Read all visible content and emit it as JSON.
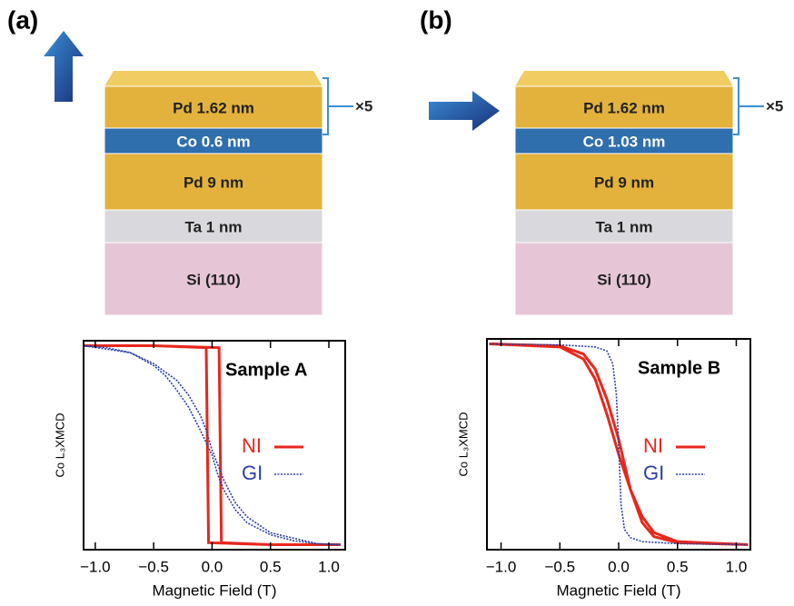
{
  "panels": [
    {
      "label": "(a)",
      "layers": [
        "Pd 1.62 nm",
        "Co 0.6 nm",
        "Pd 9 nm",
        "Ta 1 nm",
        "Si (110)"
      ],
      "repeat": "×5"
    },
    {
      "label": "(b)",
      "layers": [
        "Pd 1.62 nm",
        "Co 1.03 nm",
        "Pd 9 nm",
        "Ta 1 nm",
        "Si (110)"
      ],
      "repeat": "×5"
    }
  ],
  "chart_data": [
    {
      "type": "line",
      "annotation": "Sample A",
      "xlabel": "Magnetic Field (T)",
      "ylabel": "Co L₃XMCD",
      "xlim": [
        -1.1,
        1.14
      ],
      "ylim": [
        -1.05,
        1.05
      ],
      "xticks": [
        {
          "value": -1.0,
          "label": "−1.0"
        },
        {
          "value": -0.5,
          "label": "−0.5"
        },
        {
          "value": 0,
          "label": "0.0"
        },
        0.5,
        {
          "value": 1.0,
          "label": "1.0"
        }
      ],
      "series": [
        {
          "name": "NI",
          "color": "#e8271c",
          "x": [
            -1.1,
            -0.5,
            0.06,
            0.08,
            0.5,
            1.1,
            0.5,
            -0.03,
            -0.05,
            -0.5,
            -1.1
          ],
          "values": [
            1,
            1,
            0.98,
            -0.98,
            -1,
            -1,
            -1,
            -0.98,
            0.98,
            1,
            1
          ]
        },
        {
          "name": "GI",
          "color": "#2b3fa8",
          "x": [
            -1.1,
            -0.9,
            -0.7,
            -0.5,
            -0.4,
            -0.3,
            -0.2,
            -0.1,
            0,
            0.05,
            0.1,
            0.2,
            0.3,
            0.5,
            0.7,
            0.9,
            1.1,
            0.9,
            0.5,
            0.3,
            0.2,
            0.1,
            0,
            -0.05,
            -0.1,
            -0.2,
            -0.3,
            -0.5,
            -0.7,
            -1.1
          ],
          "values": [
            1,
            0.98,
            0.93,
            0.8,
            0.7,
            0.55,
            0.38,
            0.15,
            -0.1,
            -0.3,
            -0.45,
            -0.65,
            -0.78,
            -0.9,
            -0.96,
            -0.99,
            -1,
            -0.99,
            -0.88,
            -0.72,
            -0.58,
            -0.35,
            -0.05,
            0.15,
            0.3,
            0.5,
            0.65,
            0.82,
            0.93,
            1
          ]
        }
      ]
    },
    {
      "type": "line",
      "annotation": "Sample B",
      "xlabel": "Magnetic Field (T)",
      "ylabel": "Co L₃XMCD",
      "xlim": [
        -1.12,
        1.12
      ],
      "ylim": [
        -1.05,
        1.05
      ],
      "xticks": [
        {
          "value": -1.0,
          "label": "−1.0"
        },
        {
          "value": -0.5,
          "label": "−0.5"
        },
        {
          "value": 0,
          "label": "0.0"
        },
        0.5,
        {
          "value": 1.0,
          "label": "1.0"
        }
      ],
      "series": [
        {
          "name": "NI",
          "color": "#e8271c",
          "x": [
            -1.1,
            -0.5,
            -0.3,
            -0.2,
            -0.1,
            0,
            0.05,
            0.1,
            0.2,
            0.3,
            0.5,
            1.1,
            0.5,
            0.3,
            0.2,
            0.1,
            0,
            -0.05,
            -0.1,
            -0.2,
            -0.3,
            -0.5,
            -1.1
          ],
          "values": [
            1,
            0.98,
            0.9,
            0.75,
            0.45,
            0.05,
            -0.2,
            -0.45,
            -0.78,
            -0.92,
            -0.98,
            -1,
            -0.97,
            -0.88,
            -0.72,
            -0.45,
            -0.1,
            0.1,
            0.3,
            0.65,
            0.85,
            0.97,
            1
          ]
        },
        {
          "name": "GI",
          "color": "#2b3fa8",
          "x": [
            -1.1,
            -0.5,
            -0.2,
            -0.1,
            -0.05,
            -0.02,
            0,
            0.02,
            0.05,
            0.1,
            0.2,
            0.5,
            1.1
          ],
          "values": [
            1,
            0.99,
            0.97,
            0.93,
            0.8,
            0.5,
            0,
            -0.6,
            -0.85,
            -0.93,
            -0.97,
            -0.99,
            -1
          ]
        }
      ]
    }
  ]
}
